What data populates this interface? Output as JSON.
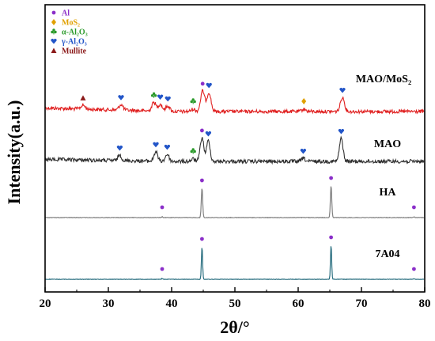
{
  "chart_data": {
    "type": "line",
    "title": "",
    "xlabel": "2θ/°",
    "ylabel": "Intensity(a.u.)",
    "xlim": [
      20,
      80
    ],
    "x_ticks": [
      20,
      30,
      40,
      50,
      60,
      70,
      80
    ],
    "grid": false,
    "legend_position": "top-left",
    "legend": [
      {
        "label": "Al",
        "marker": "circle",
        "color": "#8b2fc9"
      },
      {
        "label": "MoS₂",
        "marker": "diamond",
        "color": "#e0a000"
      },
      {
        "label": "α-Al₂O₃",
        "marker": "club",
        "color": "#2a9a2a"
      },
      {
        "label": "γ-Al₂O₃",
        "marker": "heart",
        "color": "#2255c8"
      },
      {
        "label": "Mullite",
        "marker": "triangle",
        "color": "#8b1a1a"
      }
    ],
    "series": [
      {
        "name": "MAO/MoS₂",
        "color": "#e02020",
        "peaks": [
          {
            "x": 26.0,
            "h": 0.25,
            "phase": "Mullite"
          },
          {
            "x": 32.0,
            "h": 0.35,
            "phase": "γ-Al₂O₃"
          },
          {
            "x": 37.2,
            "h": 0.55,
            "phase": "α-Al₂O₃"
          },
          {
            "x": 38.2,
            "h": 0.45,
            "phase": "γ-Al₂O₃"
          },
          {
            "x": 39.4,
            "h": 0.35,
            "phase": "γ-Al₂O₃"
          },
          {
            "x": 43.4,
            "h": 0.15,
            "phase": "α-Al₂O₃"
          },
          {
            "x": 44.9,
            "h": 1.3,
            "phase": "Al"
          },
          {
            "x": 45.9,
            "h": 1.2,
            "phase": "γ-Al₂O₃"
          },
          {
            "x": 60.9,
            "h": 0.15,
            "phase": "MoS₂"
          },
          {
            "x": 67.0,
            "h": 0.9,
            "phase": "γ-Al₂O₃"
          }
        ]
      },
      {
        "name": "MAO",
        "color": "#303030",
        "peaks": [
          {
            "x": 31.8,
            "h": 0.35,
            "phase": "γ-Al₂O₃"
          },
          {
            "x": 37.5,
            "h": 0.6,
            "phase": "γ-Al₂O₃"
          },
          {
            "x": 39.3,
            "h": 0.45,
            "phase": "γ-Al₂O₃"
          },
          {
            "x": 43.4,
            "h": 0.15,
            "phase": "α-Al₂O₃"
          },
          {
            "x": 44.8,
            "h": 1.5,
            "phase": "Al"
          },
          {
            "x": 45.8,
            "h": 1.3,
            "phase": "γ-Al₂O₃"
          },
          {
            "x": 60.8,
            "h": 0.2,
            "phase": "γ-Al₂O₃"
          },
          {
            "x": 66.8,
            "h": 1.45,
            "phase": "γ-Al₂O₃"
          }
        ]
      },
      {
        "name": "HA",
        "color": "#808080",
        "peaks": [
          {
            "x": 38.5,
            "h": 0.05,
            "phase": "Al"
          },
          {
            "x": 44.8,
            "h": 1.9,
            "phase": "Al"
          },
          {
            "x": 65.2,
            "h": 2.05,
            "phase": "Al"
          },
          {
            "x": 78.3,
            "h": 0.05,
            "phase": "Al"
          }
        ]
      },
      {
        "name": "7A04",
        "color": "#2a6f80",
        "peaks": [
          {
            "x": 38.5,
            "h": 0.05,
            "phase": "Al"
          },
          {
            "x": 44.8,
            "h": 2.1,
            "phase": "Al"
          },
          {
            "x": 65.2,
            "h": 2.2,
            "phase": "Al"
          },
          {
            "x": 78.3,
            "h": 0.05,
            "phase": "Al"
          }
        ]
      }
    ]
  }
}
